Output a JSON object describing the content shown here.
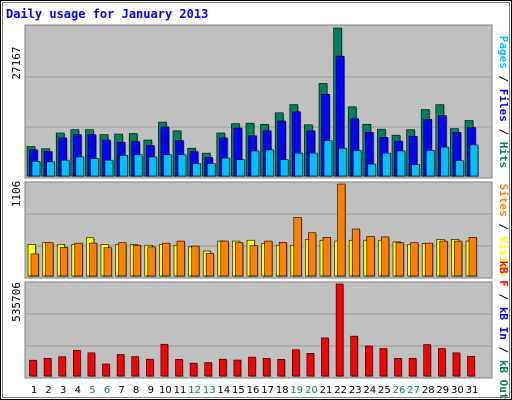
{
  "title": "Daily usage for January 2013",
  "panels": {
    "hits": {
      "max_label": "27167",
      "legend": [
        {
          "text": "Pages",
          "color": "#00c0ff"
        },
        {
          "text": " / ",
          "color": "#000000"
        },
        {
          "text": "Files",
          "color": "#0000ff"
        },
        {
          "text": " / ",
          "color": "#000000"
        },
        {
          "text": "Hits",
          "color": "#00805c"
        }
      ]
    },
    "visits": {
      "max_label": "1106",
      "legend": [
        {
          "text": "Sites",
          "color": "#ff8000"
        },
        {
          "text": " / ",
          "color": "#000000"
        },
        {
          "text": "Visits",
          "color": "#ffff00"
        }
      ]
    },
    "kbytes": {
      "max_label": "535706",
      "legend": [
        {
          "text": "kB F",
          "color": "#ff0000"
        },
        {
          "text": " / ",
          "color": "#000000"
        },
        {
          "text": "kB In",
          "color": "#0000ff"
        },
        {
          "text": " / ",
          "color": "#000000"
        },
        {
          "text": "kB Out",
          "color": "#00805c"
        }
      ]
    }
  },
  "colors": {
    "hits": "#00805c",
    "files": "#0000ff",
    "pages": "#00c0ff",
    "visits": "#ffff00",
    "sites": "#ff8000",
    "kbytes": "#ff0000",
    "weekend_day": "#00805c",
    "weekday": "#000000",
    "title": "#0000ff",
    "panel_bg": "#c0c0c0"
  },
  "chart_data": {
    "type": "bar",
    "title": "Daily usage for January 2013",
    "categories": [
      "1",
      "2",
      "3",
      "4",
      "5",
      "6",
      "7",
      "8",
      "9",
      "10",
      "11",
      "12",
      "13",
      "14",
      "15",
      "16",
      "17",
      "18",
      "19",
      "20",
      "21",
      "22",
      "23",
      "24",
      "25",
      "26",
      "27",
      "28",
      "29",
      "30",
      "31"
    ],
    "weekend_days": [
      "5",
      "6",
      "12",
      "13",
      "19",
      "20",
      "26",
      "27"
    ],
    "grid": true,
    "charts": [
      {
        "name": "hits-files-pages",
        "ylim": [
          0,
          27167
        ],
        "series": [
          {
            "name": "Hits",
            "values": [
              5400,
              5000,
              7900,
              8500,
              8500,
              7600,
              7700,
              7800,
              6600,
              9900,
              8300,
              5100,
              4200,
              7900,
              9600,
              9700,
              9500,
              11600,
              13100,
              9400,
              17000,
              27167,
              12700,
              9500,
              8600,
              7500,
              8500,
              12200,
              13100,
              8700,
              10200
            ]
          },
          {
            "name": "Files",
            "values": [
              4800,
              4500,
              7000,
              7600,
              7600,
              6600,
              6200,
              6300,
              5600,
              9000,
              6500,
              4500,
              3400,
              7000,
              8800,
              7400,
              8300,
              10100,
              11800,
              8300,
              15000,
              22000,
              10500,
              8000,
              7100,
              6400,
              7300,
              10400,
              11100,
              8000,
              8900
            ]
          },
          {
            "name": "Pages",
            "values": [
              2700,
              2600,
              2900,
              3500,
              3200,
              2900,
              3800,
              3900,
              3500,
              3900,
              3900,
              2300,
              2300,
              3300,
              3000,
              4600,
              4800,
              3000,
              4200,
              4200,
              6500,
              5100,
              4700,
              2200,
              4200,
              4600,
              2100,
              4700,
              5300,
              2800,
              5700
            ]
          }
        ]
      },
      {
        "name": "visits-sites",
        "ylim": [
          0,
          1106
        ],
        "series": [
          {
            "name": "Visits",
            "values": [
              380,
              400,
              380,
              380,
              460,
              380,
              380,
              380,
              370,
              380,
              370,
              350,
              300,
              420,
              420,
              430,
              390,
              370,
              370,
              440,
              430,
              420,
              430,
              430,
              430,
              410,
              380,
              390,
              440,
              440,
              420
            ]
          },
          {
            "name": "Sites",
            "values": [
              265,
              400,
              345,
              395,
              395,
              340,
              400,
              370,
              350,
              395,
              420,
              360,
              270,
              420,
              400,
              365,
              420,
              405,
              705,
              520,
              465,
              1106,
              565,
              475,
              470,
              400,
              400,
              395,
              420,
              420,
              465
            ]
          }
        ]
      },
      {
        "name": "kbytes",
        "ylim": [
          0,
          535706
        ],
        "series": [
          {
            "name": "kB F",
            "values": [
              92000,
              103000,
              112000,
              150000,
              135000,
              70000,
              125000,
              113000,
              98000,
              185000,
              97000,
              75000,
              78000,
              98000,
              93000,
              110000,
              103000,
              97000,
              153000,
              132000,
              222000,
              535706,
              232000,
              175000,
              160000,
              103000,
              103000,
              183000,
              160000,
              135000,
              115000
            ]
          }
        ]
      }
    ]
  }
}
